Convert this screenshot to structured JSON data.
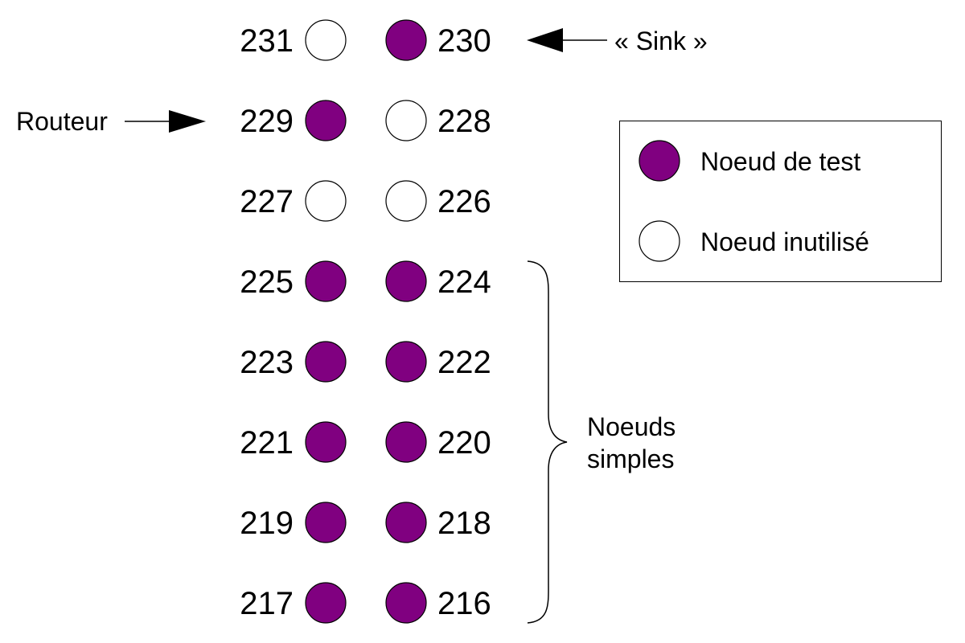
{
  "colors": {
    "test_node_fill": "#800080",
    "unused_node_fill": "#ffffff",
    "stroke": "#000000",
    "background": "#ffffff"
  },
  "rows": [
    {
      "left": {
        "id": "231",
        "type": "unused"
      },
      "right": {
        "id": "230",
        "type": "test"
      }
    },
    {
      "left": {
        "id": "229",
        "type": "test"
      },
      "right": {
        "id": "228",
        "type": "unused"
      }
    },
    {
      "left": {
        "id": "227",
        "type": "unused"
      },
      "right": {
        "id": "226",
        "type": "unused"
      }
    },
    {
      "left": {
        "id": "225",
        "type": "test"
      },
      "right": {
        "id": "224",
        "type": "test"
      }
    },
    {
      "left": {
        "id": "223",
        "type": "test"
      },
      "right": {
        "id": "222",
        "type": "test"
      }
    },
    {
      "left": {
        "id": "221",
        "type": "test"
      },
      "right": {
        "id": "220",
        "type": "test"
      }
    },
    {
      "left": {
        "id": "219",
        "type": "test"
      },
      "right": {
        "id": "218",
        "type": "test"
      }
    },
    {
      "left": {
        "id": "217",
        "type": "test"
      },
      "right": {
        "id": "216",
        "type": "test"
      }
    }
  ],
  "annotations": {
    "sink": "« Sink »",
    "router": "Routeur",
    "simple_nodes": [
      "Noeuds",
      "simples"
    ]
  },
  "legend": {
    "test_node": "Noeud de test",
    "unused_node": "Noeud inutilisé"
  }
}
